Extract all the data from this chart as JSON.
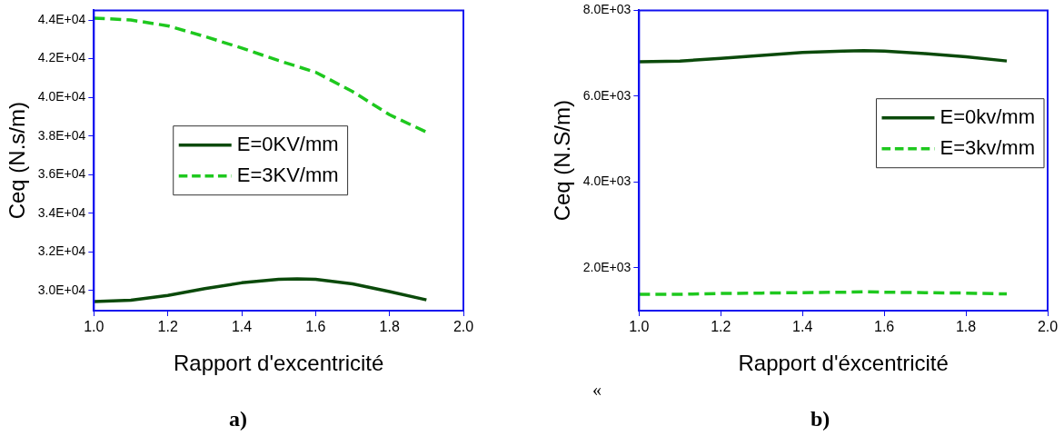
{
  "chart_data": [
    {
      "type": "line",
      "xlabel": "Rapport d'excentricité",
      "ylabel": "Ceq (N.s/m)",
      "legend": "center",
      "line_style": "solid",
      "grid": false,
      "xlim": [
        1.0,
        2.0
      ],
      "xticks": [
        {
          "value": 1.0,
          "label": "1.0"
        },
        {
          "value": 1.2,
          "label": "1.2"
        },
        {
          "value": 1.4,
          "label": "1.4"
        },
        {
          "value": 1.6,
          "label": "1.6"
        },
        {
          "value": 1.8,
          "label": "1.8"
        },
        {
          "value": 2.0,
          "label": "2.0"
        }
      ],
      "ylim": [
        28960,
        44500
      ],
      "yticks": [
        {
          "value": 30000,
          "label": "3.0E+04"
        },
        {
          "value": 32000,
          "label": "3.2E+04"
        },
        {
          "value": 34000,
          "label": "3.4E+04"
        },
        {
          "value": 36000,
          "label": "3.6E+04"
        },
        {
          "value": 38000,
          "label": "3.8E+04"
        },
        {
          "value": 40000,
          "label": "4.0E+04"
        },
        {
          "value": 42000,
          "label": "4.2E+04"
        },
        {
          "value": 44000,
          "label": "4.4E+04"
        }
      ],
      "x": [
        1.0,
        1.1,
        1.2,
        1.3,
        1.4,
        1.5,
        1.55,
        1.6,
        1.7,
        1.8,
        1.9
      ],
      "series": [
        {
          "name": "E=0KV/mm",
          "color": "#0b4a0b",
          "values": [
            29430,
            29500,
            29750,
            30100,
            30400,
            30580,
            30610,
            30580,
            30350,
            29950,
            29520
          ]
        },
        {
          "name": "E=3KV/mm",
          "color": "#1ec81e",
          "line_style": "dashed",
          "values": [
            44100,
            44000,
            43700,
            43150,
            42550,
            41900,
            41600,
            41300,
            40300,
            39100,
            38200
          ]
        }
      ],
      "annotations": [
        "a)"
      ]
    },
    {
      "type": "line",
      "xlabel": "Rapport d'éxcentricité",
      "ylabel": "Ceq (N.S/m)",
      "legend": "right",
      "line_style": "solid",
      "grid": false,
      "xlim": [
        1.0,
        2.0
      ],
      "xticks": [
        {
          "value": 1.0,
          "label": "1.0"
        },
        {
          "value": 1.2,
          "label": "1.2"
        },
        {
          "value": 1.4,
          "label": "1.4"
        },
        {
          "value": 1.6,
          "label": "1.6"
        },
        {
          "value": 1.8,
          "label": "1.8"
        },
        {
          "value": 2.0,
          "label": "2.0"
        }
      ],
      "ylim": [
        1000,
        8000
      ],
      "yticks": [
        {
          "value": 2000,
          "label": "2.0E+03"
        },
        {
          "value": 4000,
          "label": "4.0E+03"
        },
        {
          "value": 6000,
          "label": "6.0E+03"
        },
        {
          "value": 8000,
          "label": "8.0E+03"
        }
      ],
      "x": [
        1.0,
        1.1,
        1.2,
        1.3,
        1.4,
        1.5,
        1.55,
        1.6,
        1.7,
        1.8,
        1.9
      ],
      "series": [
        {
          "name": "E=0kv/mm",
          "color": "#0b4a0b",
          "values": [
            6800,
            6820,
            6880,
            6950,
            7020,
            7050,
            7060,
            7050,
            6990,
            6920,
            6820
          ]
        },
        {
          "name": "E=3kv/mm",
          "color": "#1ec81e",
          "line_style": "dashed",
          "values": [
            1380,
            1380,
            1400,
            1410,
            1420,
            1430,
            1440,
            1430,
            1420,
            1410,
            1390
          ]
        }
      ],
      "annotations": [
        "b)",
        "«"
      ]
    }
  ]
}
